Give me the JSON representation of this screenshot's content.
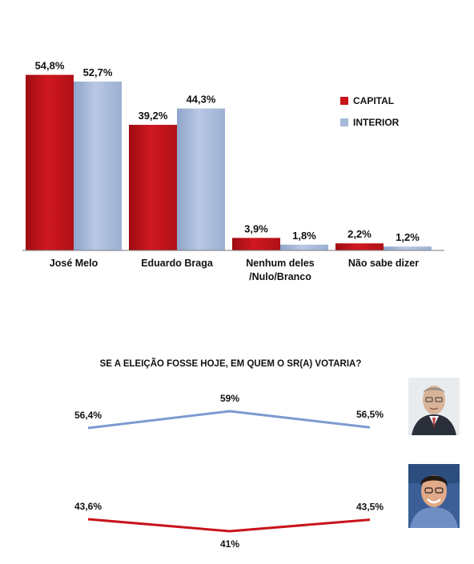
{
  "chart_data": [
    {
      "type": "bar",
      "categories": [
        "José Melo",
        "Eduardo Braga",
        "Nenhum deles\n/Nulo/Branco",
        "Não sabe dizer"
      ],
      "series": [
        {
          "name": "CAPITAL",
          "values": [
            54.8,
            39.2,
            3.9,
            2.2
          ],
          "labels": [
            "54,8%",
            "39,2%",
            "3,9%",
            "2,2%"
          ],
          "color": "#c8141a"
        },
        {
          "name": "INTERIOR",
          "values": [
            52.7,
            44.3,
            1.8,
            1.2
          ],
          "labels": [
            "52,7%",
            "44,3%",
            "1,8%",
            "1,2%"
          ],
          "color": "#a7b9d9"
        }
      ],
      "ylim": [
        0,
        60
      ],
      "grid": false,
      "legend": "right"
    },
    {
      "type": "line",
      "title": "SE A ELEIÇÃO FOSSE HOJE, EM QUEM O SR(A) VOTARIA?",
      "series": [
        {
          "values": [
            56.4,
            59,
            56.5
          ],
          "labels": [
            "56,4%",
            "59%",
            "56,5%"
          ],
          "color": "#7b9bd0",
          "icon": "jose-melo-photo"
        },
        {
          "values": [
            43.6,
            41,
            43.5
          ],
          "labels": [
            "43,6%",
            "41%",
            "43,5%"
          ],
          "color": "#c8141a",
          "icon": "eduardo-braga-photo"
        }
      ],
      "grid": false
    }
  ]
}
